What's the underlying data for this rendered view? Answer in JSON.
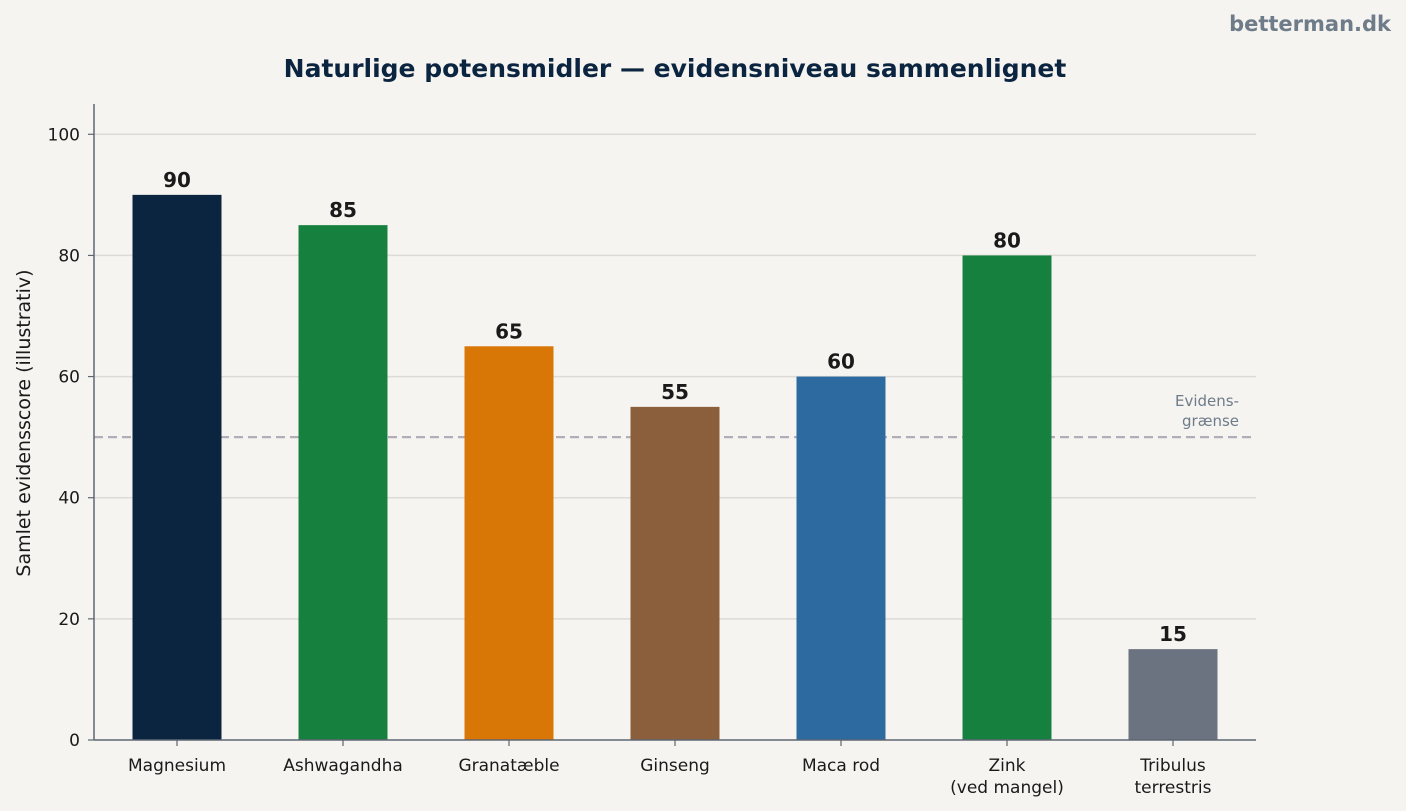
{
  "brand": "betterman.dk",
  "chart_data": {
    "type": "bar",
    "title": "Naturlige potensmidler — evidensniveau sammenlignet",
    "xlabel": "",
    "ylabel": "Samlet evidensscore (illustrativ)",
    "ylim": [
      0,
      105
    ],
    "yticks": [
      0,
      20,
      40,
      60,
      80,
      100
    ],
    "grid": true,
    "categories": [
      "Magnesium",
      "Ashwagandha",
      "Granatæble",
      "Ginseng",
      "Maca rod",
      "Zink\n(ved mangel)",
      "Tribulus\nterrestris"
    ],
    "values": [
      90,
      85,
      65,
      55,
      60,
      80,
      15
    ],
    "colors": [
      "#0b2540",
      "#16813f",
      "#d97706",
      "#8b5e3c",
      "#2d6aa0",
      "#16813f",
      "#6b7280"
    ],
    "threshold": {
      "value": 50,
      "label": "Evidens-\ngrænse",
      "color": "#b3adb8"
    }
  }
}
